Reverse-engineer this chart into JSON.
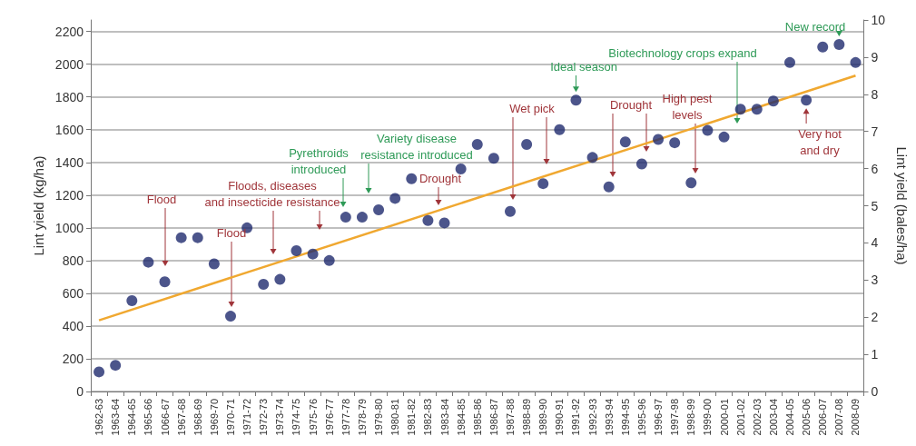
{
  "chart_data": {
    "type": "scatter",
    "ylabel": "Lint yield (kg/ha)",
    "y2label": "Lint yield (bales/ha)",
    "categories": [
      "1962-63",
      "1963-64",
      "1964-65",
      "1965-66",
      "1066-67",
      "1967-68",
      "1968-69",
      "1969-70",
      "1970-71",
      "1971-72",
      "1972-73",
      "1973-74",
      "1974-75",
      "1975-76",
      "1976-77",
      "1977-78",
      "1978-79",
      "1979-80",
      "1980-81",
      "1981-82",
      "1982-83",
      "1983-84",
      "1984-85",
      "1985-86",
      "1986-87",
      "1987-88",
      "1988-89",
      "1989-90",
      "1990-91",
      "1991-92",
      "1992-93",
      "1993-94",
      "1994-95",
      "1995-96",
      "1996-97",
      "1997-98",
      "1998-99",
      "1999-00",
      "2000-01",
      "2001-02",
      "2002-03",
      "2003-04",
      "2004-05",
      "2005-06",
      "2006-07",
      "2007-08",
      "2008-09"
    ],
    "series": [
      {
        "color": "#1f2a6e",
        "marker": "circle",
        "values": [
          120,
          160,
          555,
          790,
          670,
          940,
          940,
          780,
          460,
          1000,
          655,
          685,
          860,
          840,
          800,
          1065,
          1065,
          1110,
          1180,
          1300,
          1045,
          1030,
          1360,
          1510,
          1425,
          1100,
          1510,
          1270,
          1600,
          1780,
          1430,
          1250,
          1525,
          1390,
          1540,
          1520,
          1275,
          1595,
          1555,
          1725,
          1725,
          1775,
          2010,
          1780,
          2105,
          2120,
          2010
        ]
      },
      {
        "type": "line",
        "color": "#f0a830",
        "marker": "none",
        "line_style": "solid",
        "values": [
          435,
          null,
          null,
          null,
          null,
          null,
          null,
          null,
          null,
          null,
          null,
          null,
          null,
          null,
          null,
          null,
          null,
          null,
          null,
          null,
          null,
          null,
          null,
          null,
          null,
          null,
          null,
          null,
          null,
          null,
          null,
          null,
          null,
          null,
          null,
          null,
          null,
          null,
          null,
          null,
          null,
          null,
          null,
          null,
          null,
          null,
          1930
        ]
      }
    ],
    "ylim": [
      0,
      2270
    ],
    "yticks": [
      0,
      200,
      400,
      600,
      800,
      1000,
      1200,
      1400,
      1600,
      1800,
      2000,
      2200
    ],
    "y2lim": [
      0,
      10
    ],
    "y2ticks": [
      0,
      1,
      2,
      3,
      4,
      5,
      6,
      7,
      8,
      9,
      10
    ],
    "grid": "y",
    "annotations": [
      "Flood",
      "Flood",
      "Floods, diseases\nand insecticide resistance",
      "Pyrethroids\nintroduced",
      "Variety disease\nresistance introduced",
      "Drought",
      "Wet pick",
      {
        "text": "Ideal season",
        "x": "1991-92",
        "y": 1780
      },
      "Drought",
      "High pest\nlevels",
      "Biotechnology crops expand",
      {
        "text": "Very hot\nand dry",
        "x": "2005-06",
        "y": 1780
      },
      {
        "text": "New record",
        "x": "2007-08",
        "y": 2120
      }
    ]
  }
}
